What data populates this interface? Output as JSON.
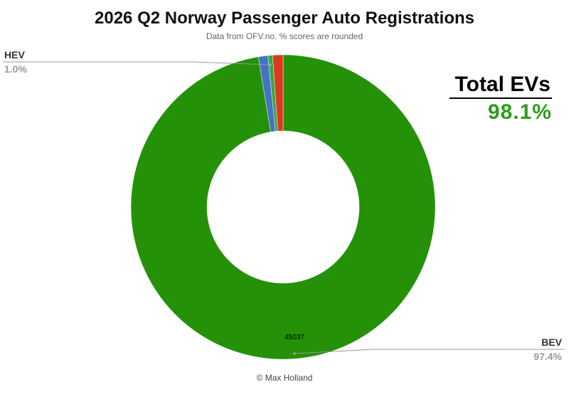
{
  "chart_data": {
    "type": "pie",
    "title": "2026 Q2 Norway Passenger Auto Registrations",
    "subtitle": "Data from OFV.no. % scores are rounded",
    "donut": true,
    "slices": [
      {
        "label": "BEV",
        "percent": 97.4,
        "value": 45037,
        "value_label": "45037",
        "color": "#259108",
        "show_label": true
      },
      {
        "label": "HEV",
        "percent": 1.0,
        "color": "#4472c4",
        "show_label": true
      },
      {
        "label": "",
        "percent": 0.5,
        "color": "#36a845",
        "show_label": false
      },
      {
        "label": "",
        "percent": 1.1,
        "color": "#dc3a1e",
        "show_label": false
      }
    ]
  },
  "callout": {
    "label": "Total EVs",
    "value": "98.1%"
  },
  "footer": "© Max Holland"
}
